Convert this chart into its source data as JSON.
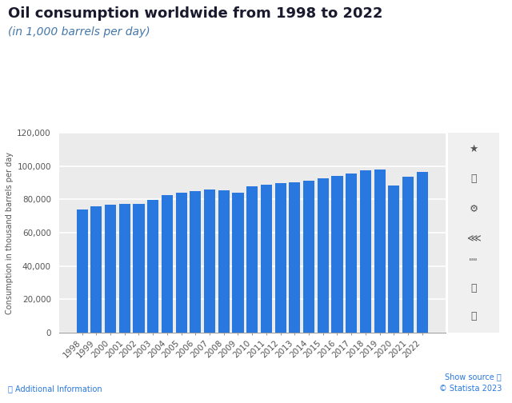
{
  "title": "Oil consumption worldwide from 1998 to 2022",
  "subtitle": "(in 1,000 barrels per day)",
  "ylabel": "Consumption in thousand barrels per day",
  "years": [
    1998,
    1999,
    2000,
    2001,
    2002,
    2003,
    2004,
    2005,
    2006,
    2007,
    2008,
    2009,
    2010,
    2011,
    2012,
    2013,
    2014,
    2015,
    2016,
    2017,
    2018,
    2019,
    2020,
    2021,
    2022
  ],
  "values": [
    73980,
    75800,
    76880,
    77420,
    77580,
    79800,
    82540,
    84050,
    85080,
    85980,
    85540,
    84050,
    87710,
    88880,
    89820,
    90540,
    91420,
    92770,
    94170,
    95840,
    97500,
    97980,
    88600,
    93920,
    96590
  ],
  "bar_color": "#2878E0",
  "background_color": "#ffffff",
  "plot_bg_color": "#ebebeb",
  "ylim": [
    0,
    120000
  ],
  "yticks": [
    0,
    20000,
    40000,
    60000,
    80000,
    100000,
    120000
  ],
  "grid_color": "#ffffff",
  "title_color": "#1a1a2e",
  "subtitle_color": "#4477aa",
  "title_fontsize": 13,
  "subtitle_fontsize": 10,
  "ylabel_fontsize": 7,
  "tick_fontsize": 7.5
}
